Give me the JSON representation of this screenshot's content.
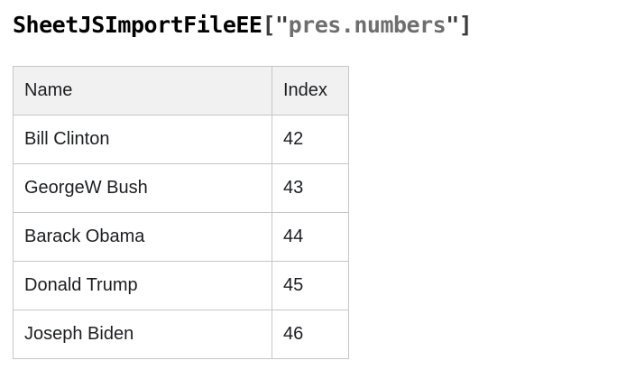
{
  "title": {
    "object_name": "SheetJSImportFileEE",
    "bracket_open": "[\"",
    "sheet_name": "pres.numbers",
    "bracket_close": "\"]"
  },
  "table": {
    "columns": [
      "Name",
      "Index"
    ],
    "rows": [
      {
        "name": "Bill Clinton",
        "index": "42"
      },
      {
        "name": "GeorgeW Bush",
        "index": "43"
      },
      {
        "name": "Barack Obama",
        "index": "44"
      },
      {
        "name": "Donald Trump",
        "index": "45"
      },
      {
        "name": "Joseph Biden",
        "index": "46"
      }
    ]
  },
  "colors": {
    "title_text": "#000000",
    "title_punctuation": "#3c3c3c",
    "title_string": "#6e6e6e",
    "table_border": "#c6c6c6",
    "header_background": "#f1f1f1",
    "body_text": "#1c1e21",
    "page_background": "#ffffff"
  }
}
